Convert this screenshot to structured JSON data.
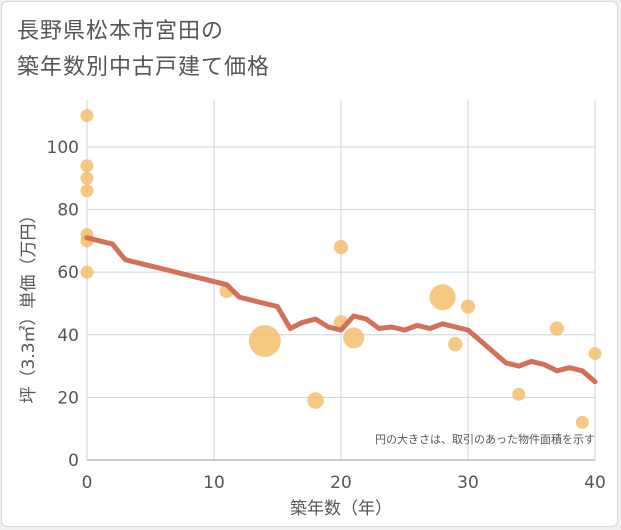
{
  "title": {
    "line1": "長野県松本市宮田の",
    "line2": "築年数別中古戸建て価格"
  },
  "chart_data": {
    "type": "scatter",
    "xlabel": "築年数（年）",
    "ylabel": "坪（3.3㎡）単価（万円）",
    "xlim": [
      0,
      40
    ],
    "ylim": [
      0,
      115
    ],
    "x_ticks": [
      0,
      10,
      20,
      30,
      40
    ],
    "y_ticks": [
      0,
      20,
      40,
      60,
      80,
      100
    ],
    "x_tick_labels": [
      "0",
      "10",
      "20",
      "30",
      "40"
    ],
    "y_tick_labels": [
      "0",
      "20",
      "40",
      "60",
      "80",
      "100"
    ],
    "grid": true,
    "note": "円の大きさは、取引のあった物件面積を示す",
    "colors": {
      "bubble": "#f4b860",
      "line": "#d4705a",
      "grid": "#c8d4e0"
    },
    "bubbles": [
      {
        "x": 0,
        "y": 110,
        "size": 1
      },
      {
        "x": 0,
        "y": 94,
        "size": 1
      },
      {
        "x": 0,
        "y": 90,
        "size": 1
      },
      {
        "x": 0,
        "y": 86,
        "size": 1
      },
      {
        "x": 0,
        "y": 72,
        "size": 1
      },
      {
        "x": 0,
        "y": 70,
        "size": 1
      },
      {
        "x": 0,
        "y": 60,
        "size": 1
      },
      {
        "x": 11,
        "y": 54,
        "size": 1.2
      },
      {
        "x": 14,
        "y": 38,
        "size": 6
      },
      {
        "x": 18,
        "y": 19,
        "size": 1.6
      },
      {
        "x": 20,
        "y": 68,
        "size": 1.2
      },
      {
        "x": 20,
        "y": 44,
        "size": 1.2
      },
      {
        "x": 21,
        "y": 39,
        "size": 2.6
      },
      {
        "x": 28,
        "y": 52,
        "size": 4
      },
      {
        "x": 29,
        "y": 37,
        "size": 1.2
      },
      {
        "x": 30,
        "y": 49,
        "size": 1.2
      },
      {
        "x": 34,
        "y": 21,
        "size": 1
      },
      {
        "x": 37,
        "y": 42,
        "size": 1.2
      },
      {
        "x": 39,
        "y": 12,
        "size": 1
      },
      {
        "x": 40,
        "y": 34,
        "size": 1
      }
    ],
    "line": {
      "x": [
        0,
        1,
        2,
        3,
        4,
        5,
        6,
        7,
        8,
        9,
        10,
        11,
        12,
        13,
        14,
        15,
        16,
        17,
        18,
        19,
        20,
        21,
        22,
        23,
        24,
        25,
        26,
        27,
        28,
        29,
        30,
        31,
        32,
        33,
        34,
        35,
        36,
        37,
        38,
        39,
        40
      ],
      "y": [
        71,
        70,
        69,
        64,
        63,
        62,
        61,
        60,
        59,
        58,
        57,
        56,
        52,
        51,
        50,
        49,
        42,
        44,
        45,
        42.5,
        41.5,
        46,
        45,
        42,
        42.5,
        41.5,
        43,
        42,
        43.5,
        42.5,
        41.5,
        38,
        34.5,
        31,
        30,
        31.5,
        30.5,
        28.5,
        29.5,
        28.5,
        25
      ]
    }
  }
}
